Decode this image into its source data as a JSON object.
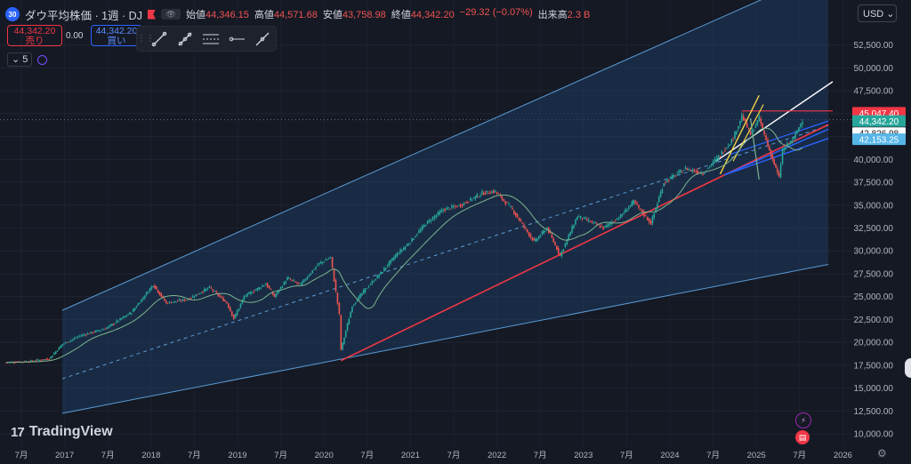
{
  "header": {
    "symbol_badge": "30",
    "title": "ダウ平均株価 · 1週 · DJ",
    "open_label": "始値",
    "open": "44,346.15",
    "high_label": "高値",
    "high": "44,571.68",
    "low_label": "安値",
    "low": "43,758.98",
    "close_label": "終値",
    "close": "44,342.20",
    "change": "−29.32 (−0.07%)",
    "volume_label": "出来高",
    "volume": "2.3 B"
  },
  "trade": {
    "sell_price": "44,342.20",
    "sell_label": "売り",
    "spread": "0.00",
    "buy_price": "44,342.20",
    "buy_label": "買い"
  },
  "indicator": {
    "count": "5"
  },
  "currency": "USD",
  "branding": {
    "logo": "17",
    "name": "TradingView"
  },
  "colors": {
    "background": "#151924",
    "candle_up": "#26a69a",
    "candle_down": "#ef5350",
    "channel_fill": "#1e3a5f",
    "channel_line": "#5b9bd5",
    "red_line": "#f23645",
    "yellow_line": "#f5d442",
    "blue_line": "#2962ff",
    "ma_line": "#7cb48f"
  },
  "chart_data": {
    "type": "candlestick",
    "x_ticks": [
      "7月",
      "2017",
      "7月",
      "2018",
      "7月",
      "2019",
      "7月",
      "2020",
      "7月",
      "2021",
      "7月",
      "2022",
      "7月",
      "2023",
      "7月",
      "2024",
      "7月",
      "2025",
      "7月",
      "2026"
    ],
    "y_ticks": [
      "52,500.00",
      "50,000.00",
      "47,500.00",
      "45,000.00",
      "42,500.00",
      "40,000.00",
      "37,500.00",
      "35,000.00",
      "32,500.00",
      "30,000.00",
      "27,500.00",
      "25,000.00",
      "22,500.00",
      "20,000.00",
      "17,500.00",
      "15,000.00",
      "12,500.00",
      "10,000.00"
    ],
    "ylim": [
      9000,
      54000
    ],
    "price_labels": [
      {
        "value": "45,047.40",
        "color": "#f23645"
      },
      {
        "value": "44,342.20",
        "color": "#26a69a"
      },
      {
        "value": "42,826.98",
        "color": "#ffffff"
      },
      {
        "value": "42,153.25",
        "color": "#56b6e8"
      }
    ],
    "series_path": [
      [
        2016.35,
        17800
      ],
      [
        2016.6,
        17900
      ],
      [
        2016.85,
        18200
      ],
      [
        2017.0,
        19800
      ],
      [
        2017.2,
        20700
      ],
      [
        2017.5,
        21500
      ],
      [
        2017.8,
        23300
      ],
      [
        2018.05,
        26300
      ],
      [
        2018.2,
        24300
      ],
      [
        2018.45,
        24700
      ],
      [
        2018.7,
        26000
      ],
      [
        2018.9,
        24300
      ],
      [
        2018.98,
        22600
      ],
      [
        2019.1,
        25000
      ],
      [
        2019.35,
        26400
      ],
      [
        2019.45,
        25000
      ],
      [
        2019.6,
        27000
      ],
      [
        2019.75,
        26300
      ],
      [
        2019.95,
        28500
      ],
      [
        2020.1,
        29300
      ],
      [
        2020.2,
        23000
      ],
      [
        2020.22,
        19200
      ],
      [
        2020.35,
        24000
      ],
      [
        2020.5,
        25800
      ],
      [
        2020.7,
        27800
      ],
      [
        2020.85,
        29500
      ],
      [
        2021.0,
        30800
      ],
      [
        2021.2,
        33000
      ],
      [
        2021.4,
        34500
      ],
      [
        2021.6,
        35000
      ],
      [
        2021.85,
        36300
      ],
      [
        2022.0,
        36500
      ],
      [
        2022.2,
        34500
      ],
      [
        2022.45,
        31000
      ],
      [
        2022.6,
        32500
      ],
      [
        2022.75,
        29500
      ],
      [
        2022.95,
        33800
      ],
      [
        2023.1,
        33200
      ],
      [
        2023.25,
        32500
      ],
      [
        2023.45,
        33800
      ],
      [
        2023.6,
        35400
      ],
      [
        2023.8,
        33000
      ],
      [
        2023.95,
        37500
      ],
      [
        2024.2,
        39000
      ],
      [
        2024.4,
        38500
      ],
      [
        2024.6,
        40500
      ],
      [
        2024.75,
        42300
      ],
      [
        2024.85,
        44800
      ],
      [
        2024.95,
        42700
      ],
      [
        2025.05,
        44500
      ],
      [
        2025.15,
        41500
      ],
      [
        2025.28,
        38000
      ],
      [
        2025.32,
        41000
      ],
      [
        2025.45,
        42300
      ],
      [
        2025.55,
        44342
      ]
    ]
  }
}
